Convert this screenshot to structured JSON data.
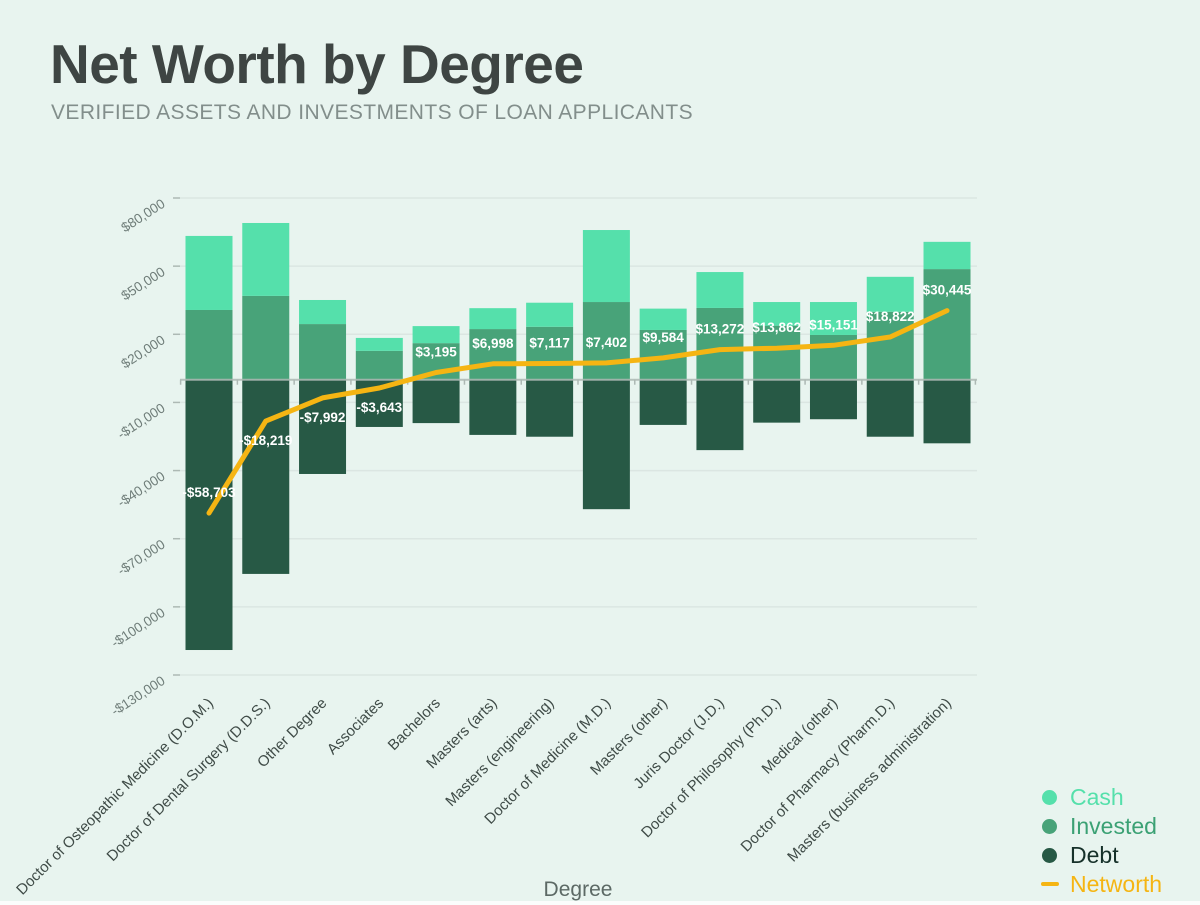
{
  "page": {
    "title": "Net Worth by Degree",
    "subtitle": "VERIFIED ASSETS AND INVESTMENTS OF LOAN APPLICANTS",
    "background_color": "#e8f4ef",
    "gridline_color": "#dbe6e2",
    "zero_line_color": "#adb9b4",
    "title_color": "#3e4543",
    "subtitle_color": "#828e8b",
    "y_tick_text_color": "#6f7d79",
    "x_tick_text_color": "#3f4b47",
    "bar_label_text_color": "#ffffff"
  },
  "legend": {
    "items": [
      {
        "label": "Cash",
        "marker": "dot",
        "color": "#55e0ab",
        "text_color": "#55e0ab"
      },
      {
        "label": "Invested",
        "marker": "dot",
        "color": "#48a379",
        "text_color": "#3ba174"
      },
      {
        "label": "Debt",
        "marker": "dot",
        "color": "#275945",
        "text_color": "#16312a"
      },
      {
        "label": "Networth",
        "marker": "dash",
        "color": "#f5b513",
        "text_color": "#f5b513"
      }
    ]
  },
  "chart_data": {
    "type": "bar",
    "subtype": "stacked bars with line overlay",
    "title": "Net Worth by Degree",
    "xlabel": "Degree",
    "ylabel": "",
    "grid": true,
    "legend_position": "bottom-right",
    "ylim": [
      -130000,
      80000
    ],
    "categories": [
      "Doctor of Osteopathic Medicine (D.O.M.)",
      "Doctor of Dental Surgery (D.D.S.)",
      "Other Degree",
      "Associates",
      "Bachelors",
      "Masters (arts)",
      "Masters (engineering)",
      "Doctor of Medicine (M.D.)",
      "Masters (other)",
      "Juris Doctor (J.D.)",
      "Doctor of Philosophy (Ph.D.)",
      "Medical (other)",
      "Doctor of Pharmacy (Pharm.D.)",
      "Masters (business administration)"
    ],
    "series": [
      {
        "name": "Cash",
        "type": "bar",
        "color": "#55e0ab",
        "values": [
          32600,
          32100,
          10600,
          5700,
          7500,
          9200,
          10600,
          31700,
          9400,
          15800,
          10400,
          14500,
          15400,
          12000
        ]
      },
      {
        "name": "Invested",
        "type": "bar",
        "color": "#48a379",
        "values": [
          30700,
          36900,
          24500,
          12700,
          16100,
          22300,
          23300,
          34200,
          21900,
          31600,
          23800,
          19700,
          29900,
          48700
        ]
      },
      {
        "name": "Debt",
        "type": "bar",
        "color": "#275945",
        "values": [
          -119000,
          -85500,
          -41500,
          -20800,
          -19100,
          -24300,
          -25100,
          -57000,
          -19900,
          -31000,
          -18900,
          -17400,
          -25100,
          -28000
        ]
      },
      {
        "name": "Networth",
        "type": "line",
        "color": "#f5b513",
        "values": [
          -58703,
          -18219,
          -7992,
          -3643,
          3195,
          6998,
          7117,
          7402,
          9584,
          13272,
          13862,
          15151,
          18822,
          30445
        ],
        "labels": [
          "-$58,703",
          "-$18,219",
          "-$7,992",
          "-$3,643",
          "$3,195",
          "$6,998",
          "$7,117",
          "$7,402",
          "$9,584",
          "$13,272",
          "$13,862",
          "$15,151",
          "$18,822",
          "$30,445"
        ],
        "label_placement": [
          "above",
          "below",
          "below",
          "below",
          "above",
          "above",
          "above",
          "above",
          "above",
          "above",
          "above",
          "above",
          "above",
          "above"
        ]
      }
    ],
    "y_axis": {
      "values": [
        80000,
        50000,
        20000,
        -10000,
        -40000,
        -70000,
        -100000,
        -130000
      ],
      "labels": [
        "$80,000",
        "$50,000",
        "$20,000",
        "-$10,000",
        "-$40,000",
        "-$70,000",
        "-$100,000",
        "-$130,000"
      ]
    }
  }
}
